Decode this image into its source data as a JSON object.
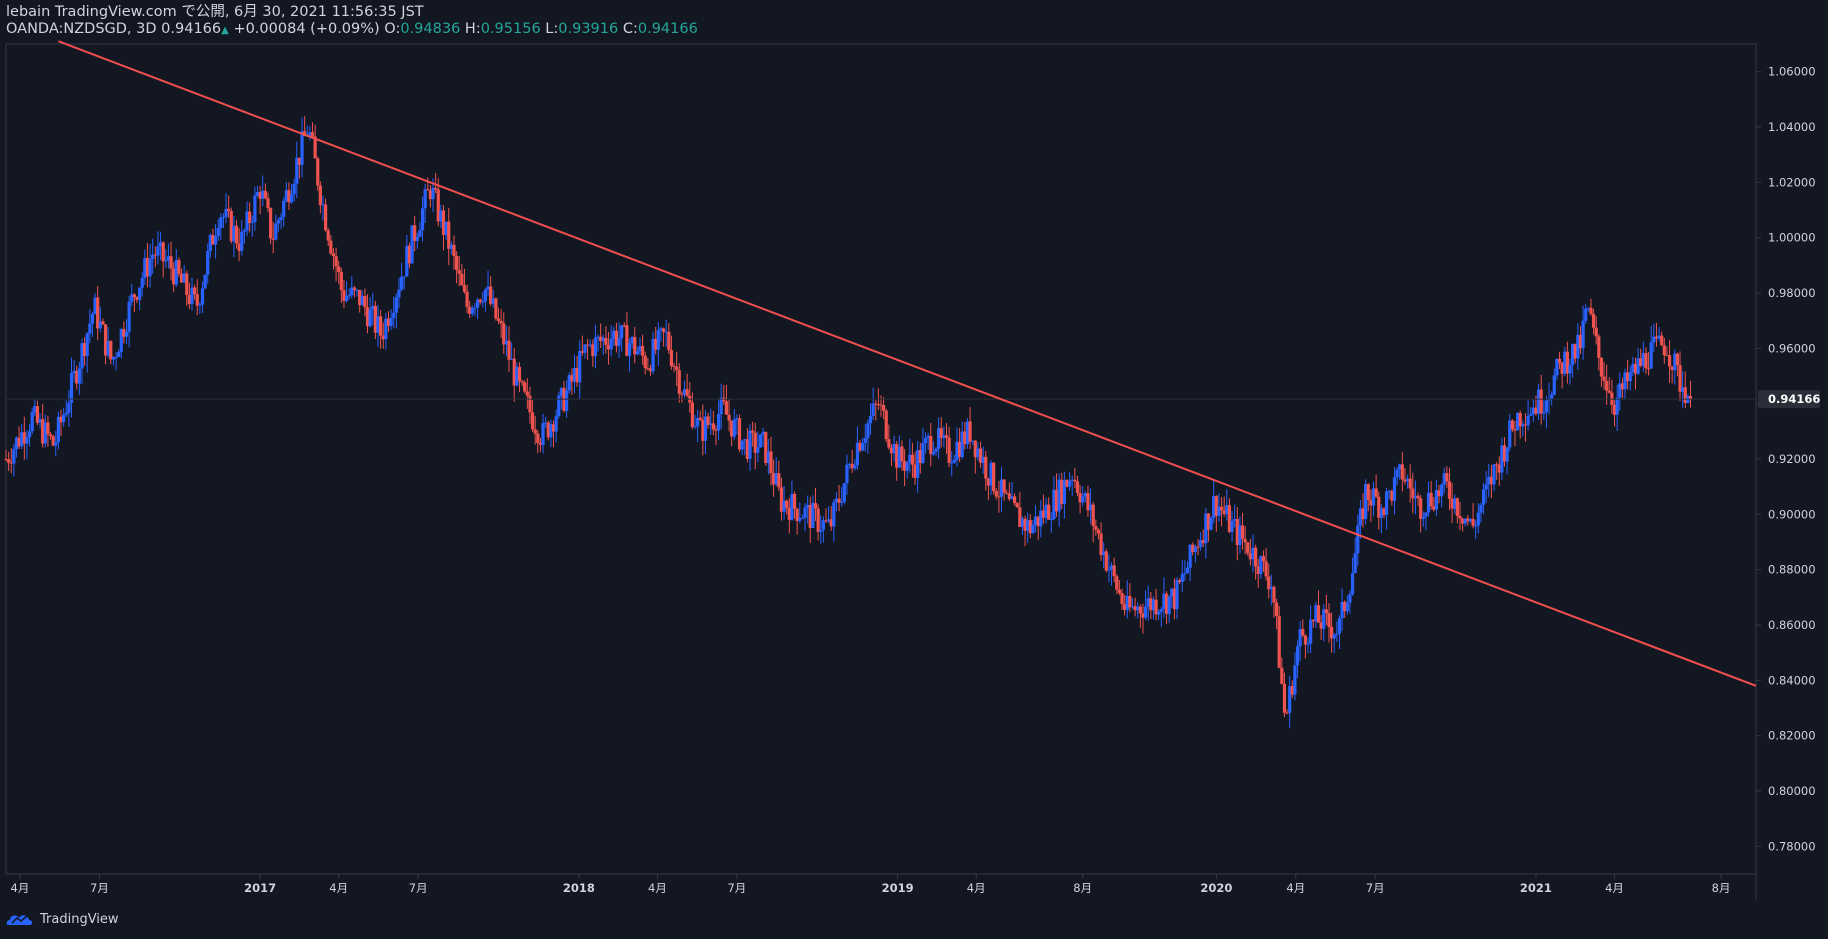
{
  "header": {
    "published_line": "lebain TradingView.com で公開, 6月 30, 2021 11:56:35 JST",
    "symbol": "OANDA:NZDSGD, 3D",
    "last_price": "0.94166",
    "change_arrow": "▲",
    "change": "+0.00084 (+0.09%)",
    "open_label": "O:",
    "open": "0.94836",
    "high_label": "H:",
    "high": "0.95156",
    "low_label": "L:",
    "low": "0.93916",
    "close_label": "C:",
    "close": "0.94166"
  },
  "footer": {
    "brand": "TradingView",
    "logo_icon": "tradingview-logo-icon"
  },
  "colors": {
    "background": "#131722",
    "up": "#2962ff",
    "down": "#ef5350",
    "trendline": "#f2504f",
    "change_value": "#26a69a",
    "axis_text": "#d1d4dc"
  },
  "chart_data": {
    "type": "candlestick",
    "symbol": "OANDA:NZDSGD",
    "interval": "3D",
    "x_range": [
      "2016-03-16",
      "2021-09-10"
    ],
    "ylim": [
      0.77,
      1.07
    ],
    "y_ticks": [
      0.78,
      0.8,
      0.82,
      0.84,
      0.86,
      0.88,
      0.9,
      0.92,
      0.94,
      0.96,
      0.98,
      1.0,
      1.02,
      1.04,
      1.06
    ],
    "y_tick_labels": [
      "0.78000",
      "0.80000",
      "0.82000",
      "0.84000",
      "0.86000",
      "0.88000",
      "0.90000",
      "0.92000",
      "0.94000",
      "0.96000",
      "0.98000",
      "1.00000",
      "1.02000",
      "1.04000",
      "1.06000"
    ],
    "x_ticks": [
      {
        "date": "2016-04-01",
        "label": "4月"
      },
      {
        "date": "2016-07-01",
        "label": "7月"
      },
      {
        "date": "2017-01-01",
        "label": "2017"
      },
      {
        "date": "2017-04-01",
        "label": "4月"
      },
      {
        "date": "2017-07-01",
        "label": "7月"
      },
      {
        "date": "2018-01-01",
        "label": "2018"
      },
      {
        "date": "2018-04-01",
        "label": "4月"
      },
      {
        "date": "2018-07-01",
        "label": "7月"
      },
      {
        "date": "2019-01-01",
        "label": "2019"
      },
      {
        "date": "2019-04-01",
        "label": "4月"
      },
      {
        "date": "2019-08-01",
        "label": "8月"
      },
      {
        "date": "2020-01-01",
        "label": "2020"
      },
      {
        "date": "2020-04-01",
        "label": "4月"
      },
      {
        "date": "2020-07-01",
        "label": "7月"
      },
      {
        "date": "2021-01-01",
        "label": "2021"
      },
      {
        "date": "2021-04-01",
        "label": "4月"
      },
      {
        "date": "2021-08-01",
        "label": "8月"
      }
    ],
    "last_price_label": "0.94166",
    "last_price": 0.94166,
    "trendline": {
      "start": {
        "date": "2016-05-15",
        "price": 1.071
      },
      "end": {
        "date": "2021-09-10",
        "price": 0.838
      }
    },
    "price_path": [
      [
        "2016-03-16",
        0.92
      ],
      [
        "2016-04-15",
        0.935
      ],
      [
        "2016-05-10",
        0.925
      ],
      [
        "2016-06-01",
        0.948
      ],
      [
        "2016-06-25",
        0.975
      ],
      [
        "2016-07-15",
        0.955
      ],
      [
        "2016-08-10",
        0.98
      ],
      [
        "2016-09-01",
        0.995
      ],
      [
        "2016-09-20",
        0.99
      ],
      [
        "2016-10-20",
        0.975
      ],
      [
        "2016-11-15",
        1.01
      ],
      [
        "2016-12-10",
        0.998
      ],
      [
        "2017-01-01",
        1.018
      ],
      [
        "2017-01-15",
        1.0
      ],
      [
        "2017-02-10",
        1.025
      ],
      [
        "2017-02-25",
        1.04
      ],
      [
        "2017-03-15",
        1.01
      ],
      [
        "2017-04-05",
        0.98
      ],
      [
        "2017-04-25",
        0.978
      ],
      [
        "2017-05-20",
        0.965
      ],
      [
        "2017-06-10",
        0.985
      ],
      [
        "2017-06-25",
        1.0
      ],
      [
        "2017-07-15",
        1.018
      ],
      [
        "2017-08-05",
        0.998
      ],
      [
        "2017-08-25",
        0.975
      ],
      [
        "2017-09-15",
        0.982
      ],
      [
        "2017-10-05",
        0.965
      ],
      [
        "2017-10-25",
        0.945
      ],
      [
        "2017-11-20",
        0.928
      ],
      [
        "2017-12-20",
        0.945
      ],
      [
        "2018-01-10",
        0.96
      ],
      [
        "2018-02-10",
        0.965
      ],
      [
        "2018-03-01",
        0.962
      ],
      [
        "2018-03-20",
        0.955
      ],
      [
        "2018-04-10",
        0.965
      ],
      [
        "2018-04-30",
        0.945
      ],
      [
        "2018-05-20",
        0.93
      ],
      [
        "2018-06-15",
        0.938
      ],
      [
        "2018-07-10",
        0.925
      ],
      [
        "2018-08-01",
        0.925
      ],
      [
        "2018-08-20",
        0.905
      ],
      [
        "2018-09-20",
        0.9
      ],
      [
        "2018-10-15",
        0.895
      ],
      [
        "2018-11-15",
        0.925
      ],
      [
        "2018-12-10",
        0.94
      ],
      [
        "2019-01-01",
        0.92
      ],
      [
        "2019-01-20",
        0.918
      ],
      [
        "2019-02-10",
        0.928
      ],
      [
        "2019-03-01",
        0.922
      ],
      [
        "2019-03-25",
        0.93
      ],
      [
        "2019-04-15",
        0.915
      ],
      [
        "2019-05-10",
        0.902
      ],
      [
        "2019-06-01",
        0.895
      ],
      [
        "2019-06-25",
        0.903
      ],
      [
        "2019-07-20",
        0.915
      ],
      [
        "2019-08-10",
        0.9
      ],
      [
        "2019-09-01",
        0.88
      ],
      [
        "2019-09-20",
        0.865
      ],
      [
        "2019-10-20",
        0.868
      ],
      [
        "2019-11-15",
        0.87
      ],
      [
        "2019-12-10",
        0.89
      ],
      [
        "2019-12-31",
        0.905
      ],
      [
        "2020-01-20",
        0.895
      ],
      [
        "2020-02-15",
        0.885
      ],
      [
        "2020-03-05",
        0.875
      ],
      [
        "2020-03-20",
        0.825
      ],
      [
        "2020-04-05",
        0.855
      ],
      [
        "2020-04-25",
        0.862
      ],
      [
        "2020-05-20",
        0.858
      ],
      [
        "2020-06-05",
        0.88
      ],
      [
        "2020-06-20",
        0.908
      ],
      [
        "2020-07-10",
        0.903
      ],
      [
        "2020-08-01",
        0.915
      ],
      [
        "2020-08-20",
        0.903
      ],
      [
        "2020-09-20",
        0.91
      ],
      [
        "2020-10-20",
        0.895
      ],
      [
        "2020-11-20",
        0.92
      ],
      [
        "2020-12-10",
        0.935
      ],
      [
        "2021-01-10",
        0.942
      ],
      [
        "2021-02-01",
        0.955
      ],
      [
        "2021-02-20",
        0.96
      ],
      [
        "2021-03-01",
        0.975
      ],
      [
        "2021-03-15",
        0.955
      ],
      [
        "2021-04-01",
        0.94
      ],
      [
        "2021-04-20",
        0.95
      ],
      [
        "2021-05-10",
        0.958
      ],
      [
        "2021-05-30",
        0.962
      ],
      [
        "2021-06-15",
        0.948
      ],
      [
        "2021-06-29",
        0.94166
      ]
    ]
  }
}
